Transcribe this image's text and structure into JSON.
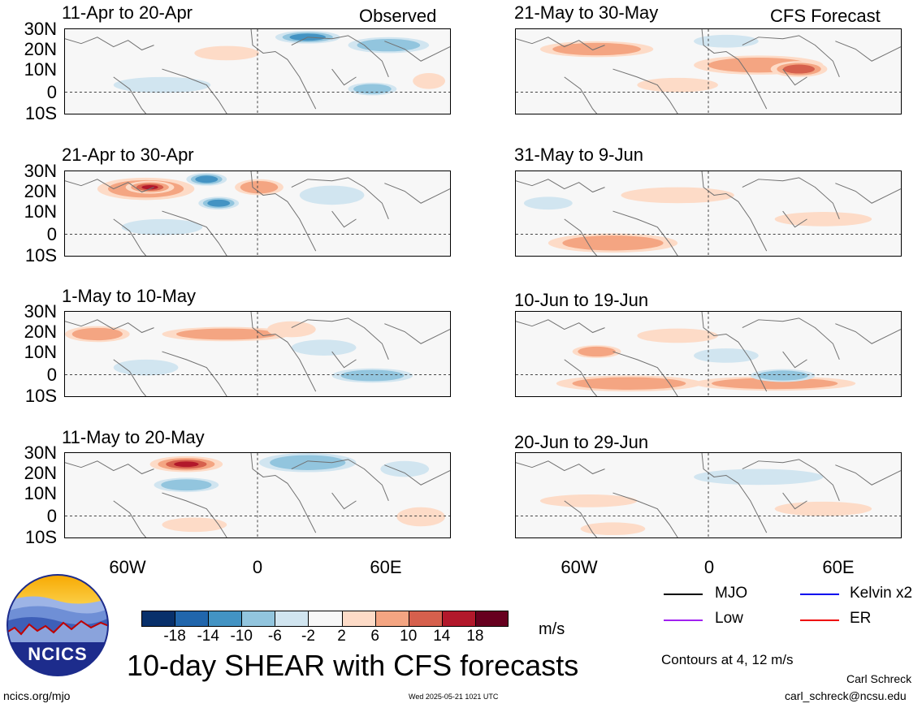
{
  "header": {
    "observed_label": "Observed",
    "forecast_label": "CFS Forecast"
  },
  "panels": {
    "left": [
      {
        "title": "11-Apr to 20-Apr"
      },
      {
        "title": "21-Apr to 30-Apr"
      },
      {
        "title": "1-May to 10-May"
      },
      {
        "title": "11-May to 20-May"
      }
    ],
    "right": [
      {
        "title": "21-May to 30-May"
      },
      {
        "title": "31-May to 9-Jun"
      },
      {
        "title": "10-Jun to 19-Jun"
      },
      {
        "title": "20-Jun to 29-Jun"
      }
    ]
  },
  "latitude_labels": [
    "30N",
    "20N",
    "10N",
    "0",
    "10S"
  ],
  "longitude_labels": [
    "60W",
    "0",
    "60E"
  ],
  "colorbar": {
    "ticks": [
      "-18",
      "-14",
      "-10",
      "-6",
      "-2",
      "2",
      "6",
      "10",
      "14",
      "18"
    ],
    "colors": [
      "#08306b",
      "#2166ac",
      "#4393c3",
      "#92c5de",
      "#d1e5f0",
      "#f7f7f7",
      "#fddbc7",
      "#f4a582",
      "#d6604d",
      "#b2182b",
      "#67001f"
    ],
    "unit": "m/s"
  },
  "legend": {
    "items": [
      {
        "label": "MJO",
        "color": "#000000"
      },
      {
        "label": "Kelvin x2",
        "color": "#0000ee"
      },
      {
        "label": "Low",
        "color": "#a020f0"
      },
      {
        "label": "ER",
        "color": "#ee0000"
      }
    ],
    "note": "Contours at 4, 12 m/s"
  },
  "logo": {
    "text": "NCICS"
  },
  "footer": {
    "title": "10-day SHEAR with CFS forecasts",
    "url": "ncics.org/mjo",
    "timestamp": "Wed 2025-05-21 1021 UTC",
    "author": "Carl Schreck",
    "email": "carl_schreck@ncsu.edu"
  }
}
